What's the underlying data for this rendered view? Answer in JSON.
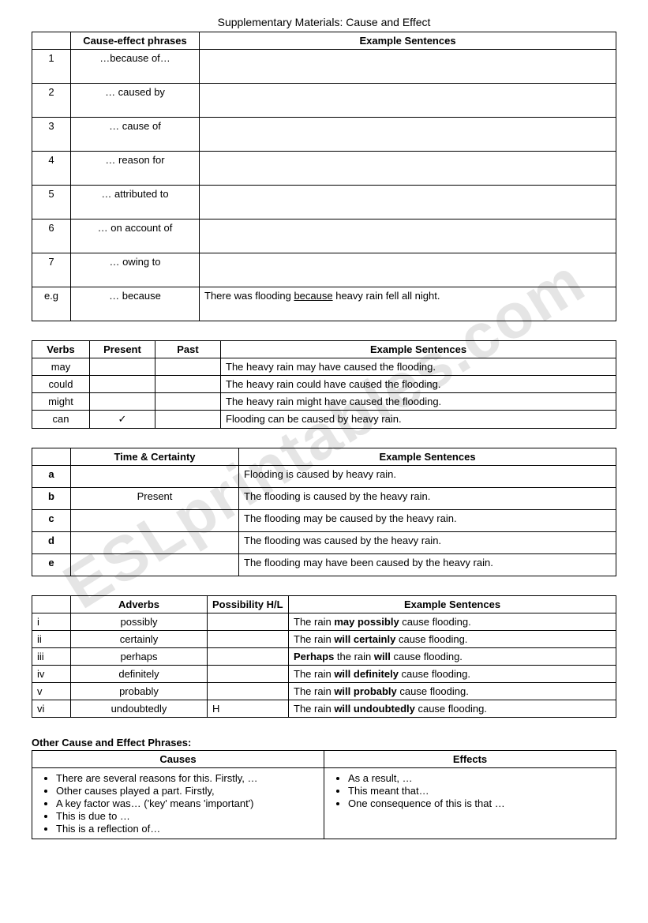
{
  "title": "Supplementary Materials:   Cause and Effect",
  "watermark": "ESLprintables.com",
  "table1": {
    "h_phrase": "Cause-effect phrases",
    "h_example": "Example Sentences",
    "rows": [
      {
        "n": "1",
        "phrase": "…because of…",
        "ex": ""
      },
      {
        "n": "2",
        "phrase": "… caused by",
        "ex": ""
      },
      {
        "n": "3",
        "phrase": "… cause of",
        "ex": ""
      },
      {
        "n": "4",
        "phrase": "… reason for",
        "ex": ""
      },
      {
        "n": "5",
        "phrase": "… attributed to",
        "ex": ""
      },
      {
        "n": "6",
        "phrase": "… on account of",
        "ex": ""
      },
      {
        "n": "7",
        "phrase": "… owing to",
        "ex": ""
      }
    ],
    "eg_label": "e.g",
    "eg_phrase": "… because",
    "eg_pre": "There was flooding ",
    "eg_u": "because",
    "eg_post": " heavy rain fell all night."
  },
  "table2": {
    "h_verbs": "Verbs",
    "h_present": "Present",
    "h_past": "Past",
    "h_example": "Example Sentences",
    "rows": [
      {
        "v": "may",
        "pres": "",
        "past": "",
        "ex": "The heavy rain may have caused the flooding."
      },
      {
        "v": "could",
        "pres": "",
        "past": "",
        "ex": "The heavy rain could have caused the flooding."
      },
      {
        "v": "might",
        "pres": "",
        "past": "",
        "ex": "The heavy rain might have caused the flooding."
      },
      {
        "v": "can",
        "pres": "✓",
        "past": "",
        "ex": "Flooding can be caused by heavy rain."
      }
    ]
  },
  "table3": {
    "h_tc": "Time & Certainty",
    "h_example": "Example Sentences",
    "rows": [
      {
        "k": "a",
        "tc": "",
        "ex": "Flooding is caused by heavy rain."
      },
      {
        "k": "b",
        "tc": "Present",
        "ex": "The flooding is caused by the heavy rain."
      },
      {
        "k": "c",
        "tc": "",
        "ex": "The flooding may be caused by the heavy rain."
      },
      {
        "k": "d",
        "tc": "",
        "ex": "The flooding was caused by the heavy rain."
      },
      {
        "k": "e",
        "tc": "",
        "ex": "The flooding may have been caused by the heavy rain."
      }
    ]
  },
  "table4": {
    "h_adv": "Adverbs",
    "h_poss": "Possibility H/L",
    "h_example": "Example Sentences",
    "rows": [
      {
        "k": "i",
        "adv": "possibly",
        "poss": "",
        "pre": "The rain ",
        "b": "may possibly",
        "post": " cause flooding."
      },
      {
        "k": "ii",
        "adv": "certainly",
        "poss": "",
        "pre": "The rain ",
        "b": "will certainly",
        "post": " cause flooding."
      },
      {
        "k": "iii",
        "adv": "perhaps",
        "poss": "",
        "preB": "Perhaps",
        "mid": " the rain ",
        "b": "will",
        "post": " cause flooding."
      },
      {
        "k": "iv",
        "adv": "definitely",
        "poss": "",
        "pre": "The rain ",
        "b": "will definitely",
        "post": " cause flooding."
      },
      {
        "k": "v",
        "adv": "probably",
        "poss": "",
        "pre": "The rain ",
        "b": "will probably",
        "post": " cause flooding."
      },
      {
        "k": "vi",
        "adv": "undoubtedly",
        "poss": "H",
        "pre": "The rain ",
        "b": "will undoubtedly",
        "post": " cause flooding."
      }
    ]
  },
  "other": {
    "heading": "Other Cause and Effect Phrases:",
    "h_causes": "Causes",
    "h_effects": "Effects",
    "causes": [
      "There are several reasons for this. Firstly, …",
      "Other causes played a part. Firstly,",
      "A key factor was… ('key' means 'important')",
      "This is due to …",
      "This is a reflection of…"
    ],
    "effects": [
      "As a result, …",
      "This meant that…",
      "One consequence of this is that …"
    ]
  }
}
